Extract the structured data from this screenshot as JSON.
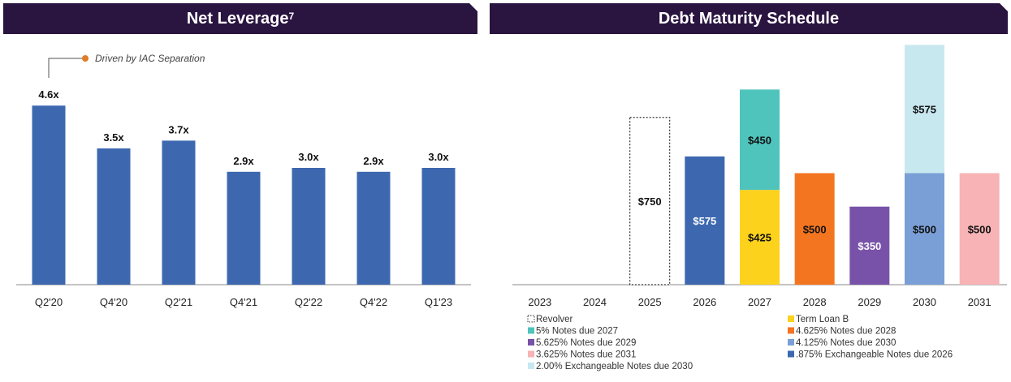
{
  "left_panel": {
    "title": "Net Leverage",
    "title_sup": "7"
  },
  "right_panel": {
    "title": "Debt Maturity Schedule"
  },
  "annotation": {
    "text": "Driven by IAC Separation",
    "dot_color": "#e07b28"
  },
  "chart_data": [
    {
      "type": "bar",
      "title": "Net Leverage",
      "categories": [
        "Q2'20",
        "Q4'20",
        "Q2'21",
        "Q4'21",
        "Q2'22",
        "Q4'22",
        "Q1'23"
      ],
      "values": [
        4.6,
        3.5,
        3.7,
        2.9,
        3.0,
        2.9,
        3.0
      ],
      "labels": [
        "4.6x",
        "3.5x",
        "3.7x",
        "2.9x",
        "3.0x",
        "2.9x",
        "3.0x"
      ],
      "ylim": [
        0,
        5
      ],
      "bar_color": "#3d68b0",
      "grid": false
    },
    {
      "type": "bar",
      "stacked": true,
      "title": "Debt Maturity Schedule",
      "categories": [
        "2023",
        "2024",
        "2025",
        "2026",
        "2027",
        "2028",
        "2029",
        "2030",
        "2031"
      ],
      "ylim": [
        0,
        1075
      ],
      "grid": false,
      "legend_placement": "bottom",
      "series": [
        {
          "name": "Revolver",
          "color": "#ffffff",
          "dashed": true,
          "values": [
            0,
            0,
            750,
            0,
            0,
            0,
            0,
            0,
            0
          ],
          "labels": [
            "",
            "",
            "$750",
            "",
            "",
            "",
            "",
            "",
            ""
          ]
        },
        {
          "name": "Term Loan B",
          "color": "#fcd21c",
          "values": [
            0,
            0,
            0,
            0,
            425,
            0,
            0,
            0,
            0
          ],
          "labels": [
            "",
            "",
            "",
            "",
            "$425",
            "",
            "",
            "",
            ""
          ]
        },
        {
          "name": "5% Notes due 2027",
          "color": "#4fc4bd",
          "values": [
            0,
            0,
            0,
            0,
            450,
            0,
            0,
            0,
            0
          ],
          "labels": [
            "",
            "",
            "",
            "",
            "$450",
            "",
            "",
            "",
            ""
          ]
        },
        {
          "name": "4.625% Notes due 2028",
          "color": "#f47520",
          "values": [
            0,
            0,
            0,
            0,
            0,
            500,
            0,
            0,
            0
          ],
          "labels": [
            "",
            "",
            "",
            "",
            "",
            "$500",
            "",
            "",
            ""
          ]
        },
        {
          "name": "5.625% Notes due 2029",
          "color": "#7852a8",
          "values": [
            0,
            0,
            0,
            0,
            0,
            0,
            350,
            0,
            0
          ],
          "labels": [
            "",
            "",
            "",
            "",
            "",
            "",
            "$350",
            "",
            ""
          ]
        },
        {
          "name": "4.125% Notes due 2030",
          "color": "#7a9fd6",
          "values": [
            0,
            0,
            0,
            0,
            0,
            0,
            0,
            500,
            0
          ],
          "labels": [
            "",
            "",
            "",
            "",
            "",
            "",
            "",
            "$500",
            ""
          ]
        },
        {
          "name": "3.625% Notes due 2031",
          "color": "#f7b3b5",
          "values": [
            0,
            0,
            0,
            0,
            0,
            0,
            0,
            0,
            500
          ],
          "labels": [
            "",
            "",
            "",
            "",
            "",
            "",
            "",
            "",
            "$500"
          ]
        },
        {
          "name": ".875% Exchangeable Notes due 2026",
          "color": "#3d68b0",
          "values": [
            0,
            0,
            0,
            575,
            0,
            0,
            0,
            0,
            0
          ],
          "labels": [
            "",
            "",
            "",
            "$575",
            "",
            "",
            "",
            "",
            ""
          ]
        },
        {
          "name": "2.00% Exchangeable Notes due 2030",
          "color": "#c8e8f0",
          "values": [
            0,
            0,
            0,
            0,
            0,
            0,
            0,
            575,
            0
          ],
          "labels": [
            "",
            "",
            "",
            "",
            "",
            "",
            "",
            "$575",
            ""
          ]
        }
      ]
    }
  ]
}
